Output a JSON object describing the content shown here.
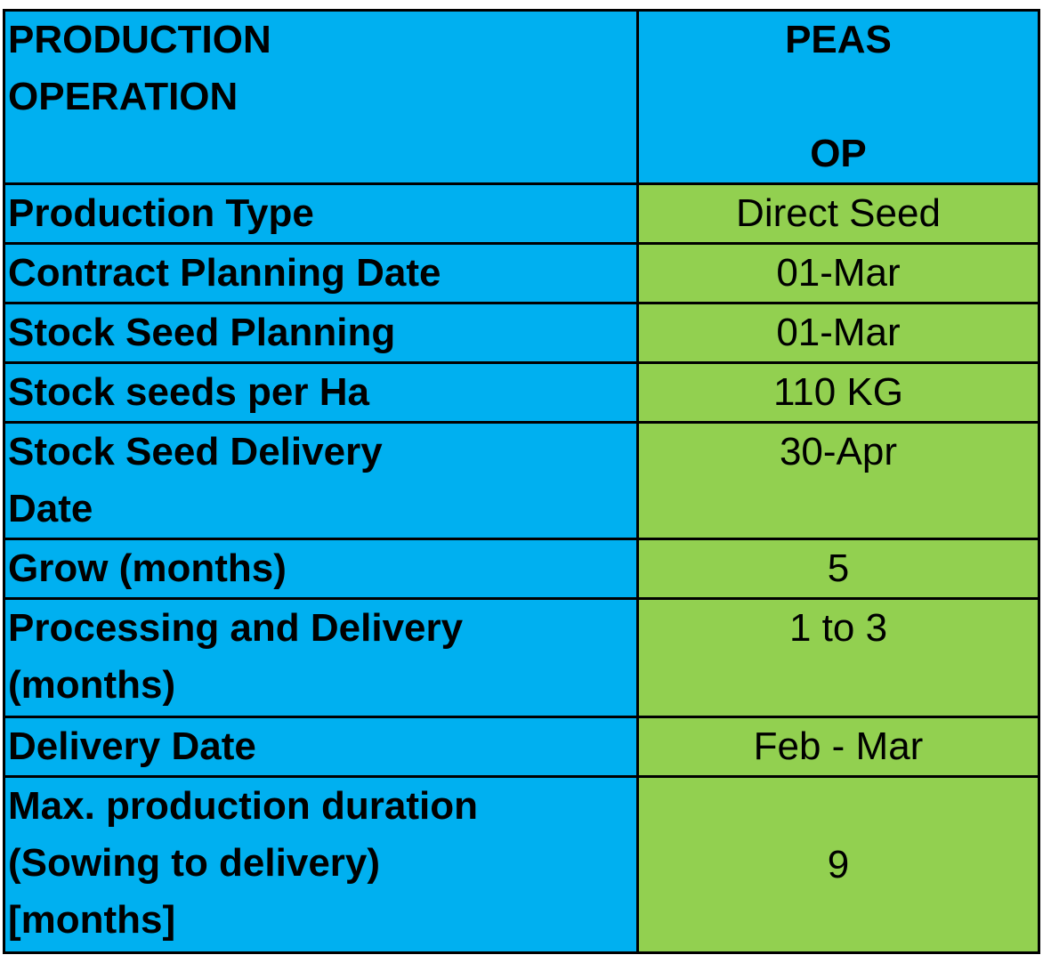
{
  "header": {
    "label_lines": [
      "PRODUCTION",
      "OPERATION"
    ],
    "value_lines": [
      "PEAS",
      "",
      "OP"
    ]
  },
  "rows": [
    {
      "label_lines": [
        "Production Type"
      ],
      "value": "Direct Seed"
    },
    {
      "label_lines": [
        "Contract Planning Date"
      ],
      "value": "01-Mar"
    },
    {
      "label_lines": [
        "Stock Seed Planning"
      ],
      "value": "01-Mar"
    },
    {
      "label_lines": [
        "Stock seeds per Ha"
      ],
      "value": "110 KG"
    },
    {
      "label_lines": [
        "Stock Seed Delivery",
        "Date"
      ],
      "value": "30-Apr"
    },
    {
      "label_lines": [
        "Grow (months)"
      ],
      "value": "5"
    },
    {
      "label_lines": [
        "Processing and Delivery",
        "(months)"
      ],
      "value": "1 to 3"
    },
    {
      "label_lines": [
        "Delivery Date"
      ],
      "value": "Feb - Mar"
    },
    {
      "label_lines": [
        "Max. production duration",
        "(Sowing to delivery)",
        "[months]"
      ],
      "value": "9"
    }
  ],
  "colors": {
    "label_bg": "#00B0F0",
    "value_bg": "#92D050",
    "border": "#000000"
  }
}
